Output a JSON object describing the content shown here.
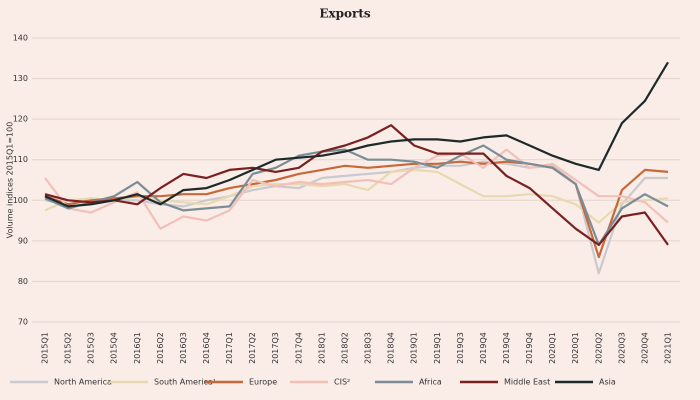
{
  "chart_data": {
    "type": "line",
    "title": "Exports",
    "y_label": "Volume indices 2015Q1=100",
    "categories": [
      "2015Q1",
      "2015Q2",
      "2015Q3",
      "2015Q4",
      "2016Q1",
      "2016Q2",
      "2016Q3",
      "2016Q4",
      "2017Q1",
      "2017Q2",
      "2017Q3",
      "2017Q4",
      "2018Q1",
      "2018Q2",
      "2018Q3",
      "2018Q4",
      "2019Q1",
      "2019Q1",
      "2019Q3",
      "2019Q4",
      "2019Q4",
      "2019Q4",
      "2020Q1",
      "2020Q1",
      "2020Q2",
      "2020Q3",
      "2020Q4",
      "2021Q1"
    ],
    "ylim": [
      70,
      140
    ],
    "yticks": [
      70,
      80,
      90,
      100,
      110,
      120,
      130,
      140
    ],
    "grid": true,
    "series": [
      {
        "name": "North America",
        "color": "#c9c9cf",
        "values": [
          100,
          99,
          100.5,
          100,
          100,
          99,
          98.5,
          100,
          101,
          102.5,
          103.5,
          103,
          105.5,
          106,
          106.5,
          107,
          108,
          108.5,
          108.5,
          109.5,
          109,
          108,
          108.5,
          104,
          82,
          99,
          105.5,
          105.5
        ]
      },
      {
        "name": "South America¹",
        "color": "#e8d9b0",
        "values": [
          97.5,
          100,
          100.5,
          100,
          101,
          100,
          99.5,
          99,
          101,
          103.5,
          104,
          104,
          103.5,
          104,
          102.5,
          107,
          107.5,
          107,
          104,
          101,
          101,
          101.5,
          101,
          99,
          94.5,
          99.5,
          100,
          100.5
        ]
      },
      {
        "name": "Europe",
        "color": "#c8683a",
        "values": [
          101,
          99,
          100,
          100.5,
          101,
          101,
          101.5,
          101.5,
          103,
          104,
          105,
          106.5,
          107.5,
          108.5,
          108,
          108.5,
          109,
          109,
          109.5,
          109,
          109.5,
          109,
          108,
          104,
          86,
          102.5,
          107.5,
          107
        ]
      },
      {
        "name": "CIS²",
        "color": "#f2c0b8",
        "values": [
          105.5,
          98,
          97,
          99.5,
          102,
          93,
          96,
          95,
          97.5,
          105,
          103.5,
          104.5,
          104,
          104.5,
          105,
          104,
          108,
          111,
          111.5,
          108,
          112.5,
          108,
          109,
          105,
          101,
          101,
          99.5,
          94.5
        ]
      },
      {
        "name": "Africa",
        "color": "#7a8d96",
        "values": [
          100.5,
          98,
          99.5,
          101,
          104.5,
          99.5,
          97.5,
          98,
          98.5,
          106.5,
          108,
          111,
          112,
          112.5,
          110,
          110,
          109.5,
          108,
          111,
          113.5,
          110,
          109,
          108,
          104,
          89,
          98,
          101.5,
          98.5
        ]
      },
      {
        "name": "Middle East",
        "color": "#7a2020",
        "values": [
          101.5,
          100,
          99.5,
          100,
          99,
          103,
          106.5,
          105.5,
          107.5,
          108,
          107,
          108,
          112,
          113.5,
          115.5,
          118.5,
          113.5,
          111.5,
          111.5,
          111.5,
          106,
          103,
          98,
          93,
          89,
          96,
          97,
          89
        ]
      },
      {
        "name": "Asia",
        "color": "#1d2a2a",
        "values": [
          101,
          98.5,
          99,
          100,
          101.5,
          99,
          102.5,
          103,
          105,
          107.5,
          110,
          110.5,
          111,
          112,
          113.5,
          114.5,
          115,
          115,
          114.5,
          115.5,
          116,
          113.5,
          111,
          109,
          107.5,
          119,
          124.5,
          134
        ]
      }
    ]
  }
}
